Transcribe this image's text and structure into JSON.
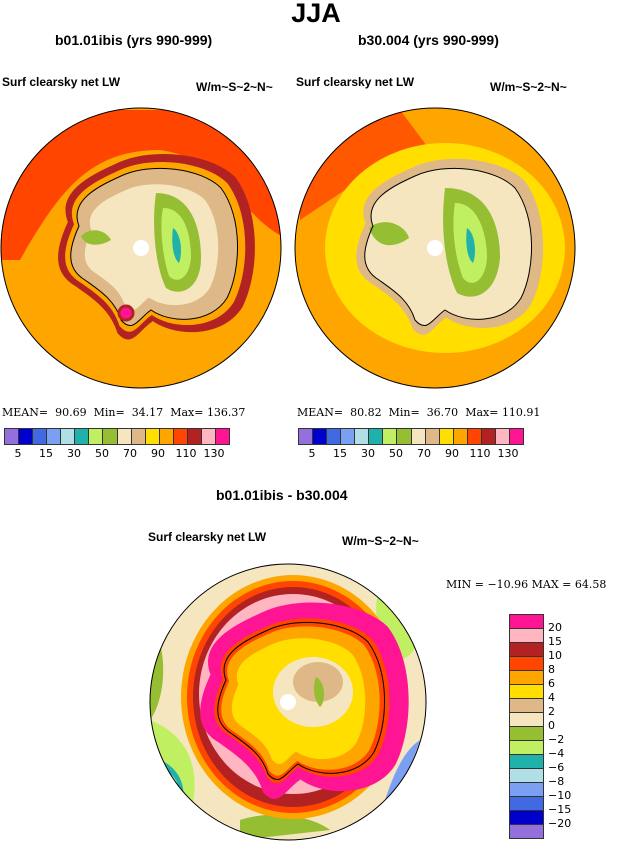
{
  "title": "JJA",
  "panels": [
    {
      "subtitle": "b01.01ibis (yrs 990-999)",
      "variable": "Surf clearsky net LW",
      "units": "W/m~S~2~N~",
      "mean_label": "MEAN=",
      "mean": "90.69",
      "min_label": "Min=",
      "min": "34.17",
      "max_label": "Max=",
      "max": "136.37"
    },
    {
      "subtitle": "b30.004 (yrs 990-999)",
      "variable": "Surf clearsky net LW",
      "units": "W/m~S~2~N~",
      "mean_label": "MEAN=",
      "mean": "80.82",
      "min_label": "Min=",
      "min": "36.70",
      "max_label": "Max=",
      "max": "110.91"
    }
  ],
  "diff": {
    "title": "b01.01ibis - b30.004",
    "variable": "Surf clearsky net LW",
    "units": "W/m~S~2~N~",
    "minmax": "MIN = −10.96  MAX =   64.58"
  },
  "colors": [
    "#9370DB",
    "#0000CD",
    "#4169E1",
    "#7B9FF2",
    "#B0E0E6",
    "#20B2AA",
    "#C0F062",
    "#96BE32",
    "#F5E6C0",
    "#DEB887",
    "#FFDE00",
    "#FFA500",
    "#FF4500",
    "#B22222",
    "#FFB6C1",
    "#FF1493"
  ],
  "abs_ticks": [
    "5",
    "15",
    "30",
    "50",
    "70",
    "90",
    "110",
    "130"
  ],
  "diff_ticks": [
    "20",
    "15",
    "10",
    "8",
    "6",
    "4",
    "2",
    "0",
    "−2",
    "−4",
    "−6",
    "−8",
    "−10",
    "−15",
    "−20"
  ]
}
